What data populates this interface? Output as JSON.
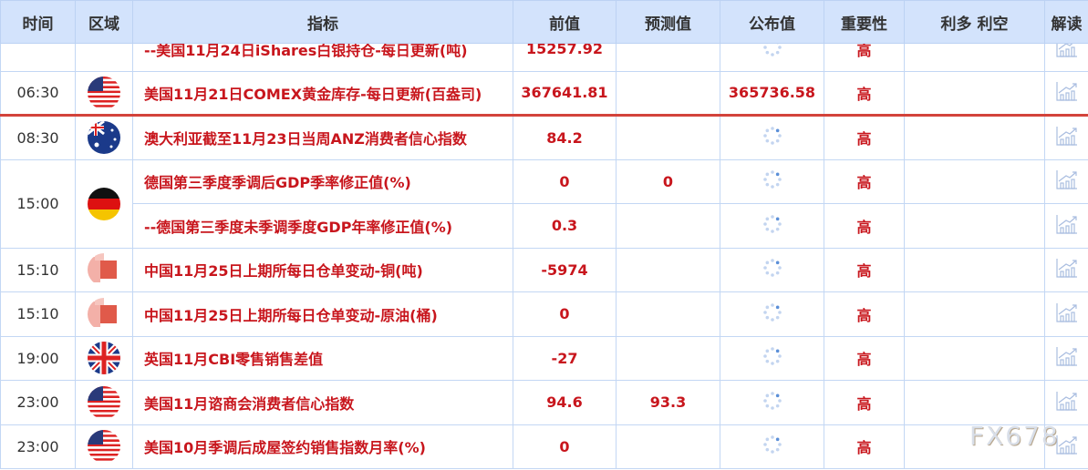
{
  "header": {
    "time": "时间",
    "region": "区域",
    "indicator": "指标",
    "previous": "前值",
    "forecast": "预测值",
    "actual": "公布值",
    "importance": "重要性",
    "impact": "利多 利空",
    "analysis": "解读"
  },
  "rows": [
    {
      "time": "",
      "flag": "none",
      "name": "--美国11月24日iShares白银持仓-每日更新(吨)",
      "previous": "15257.92",
      "forecast": "",
      "actual": "",
      "actual_loading": true,
      "importance": "高"
    },
    {
      "time": "06:30",
      "flag": "us-flag",
      "name": "美国11月21日COMEX黄金库存-每日更新(百盎司)",
      "previous": "367641.81",
      "forecast": "",
      "actual": "365736.58",
      "actual_loading": false,
      "importance": "高",
      "separator": true
    },
    {
      "time": "08:30",
      "flag": "australia-flag",
      "name": "澳大利亚截至11月23日当周ANZ消费者信心指数",
      "previous": "84.2",
      "forecast": "",
      "actual": "",
      "actual_loading": true,
      "importance": "高"
    },
    {
      "time": "15:00",
      "flag": "germany-flag",
      "rowspan": 2,
      "name": "德国第三季度季调后GDP季率修正值(%)",
      "previous": "0",
      "forecast": "0",
      "actual": "",
      "actual_loading": true,
      "importance": "高"
    },
    {
      "time": "",
      "flag": "skip",
      "name": "--德国第三季度未季调季度GDP年率修正值(%)",
      "previous": "0.3",
      "forecast": "",
      "actual": "",
      "actual_loading": true,
      "importance": "高"
    },
    {
      "time": "15:10",
      "flag": "china-flag",
      "name": "中国11月25日上期所每日仓单变动-铜(吨)",
      "previous": "-5974",
      "forecast": "",
      "actual": "",
      "actual_loading": true,
      "importance": "高"
    },
    {
      "time": "15:10",
      "flag": "china-flag",
      "name": "中国11月25日上期所每日仓单变动-原油(桶)",
      "previous": "0",
      "forecast": "",
      "actual": "",
      "actual_loading": true,
      "importance": "高"
    },
    {
      "time": "19:00",
      "flag": "uk-flag",
      "name": "英国11月CBI零售销售差值",
      "previous": "-27",
      "forecast": "",
      "actual": "",
      "actual_loading": true,
      "importance": "高"
    },
    {
      "time": "23:00",
      "flag": "us-flag",
      "name": "美国11月谘商会消费者信心指数",
      "previous": "94.6",
      "forecast": "93.3",
      "actual": "",
      "actual_loading": true,
      "importance": "高"
    },
    {
      "time": "23:00",
      "flag": "us-flag",
      "name": "美国10月季调后成屋签约销售指数月率(%)",
      "previous": "0",
      "forecast": "",
      "actual": "",
      "actual_loading": true,
      "importance": "高"
    }
  ],
  "watermark": "FX678",
  "colors": {
    "header_bg": "#d3e3fc",
    "text_red": "#c8161d",
    "border": "#c3d7f4",
    "separator": "#d3433b"
  }
}
